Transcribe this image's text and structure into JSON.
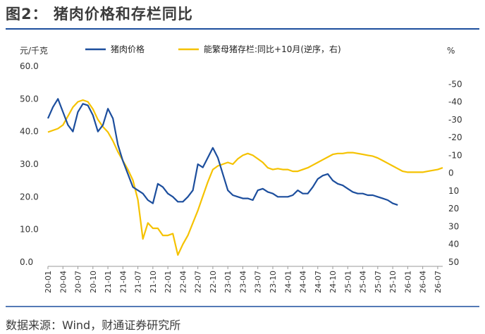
{
  "figure": {
    "title": "图2： 猪肉价格和存栏同比",
    "source": "数据来源：Wind，财通证券研究所"
  },
  "colors": {
    "pork": "#1c4e9d",
    "stock": "#f5c200",
    "rule": "#1c4e9d",
    "axis": "#999999"
  },
  "chart_data": {
    "type": "line",
    "left_unit": "元/千克",
    "right_unit": "%",
    "left_axis": {
      "ylim": [
        0,
        60
      ],
      "ticks": [
        "0.0",
        "10.0",
        "20.0",
        "30.0",
        "40.0",
        "50.0",
        "60.0"
      ]
    },
    "right_axis": {
      "reversed": true,
      "ylim": [
        -60,
        50
      ],
      "ticks": [
        "-50",
        "-40",
        "-30",
        "-20",
        "-10",
        "0",
        "10",
        "20",
        "30",
        "40",
        "50"
      ]
    },
    "x_ticks": [
      "20-01",
      "20-04",
      "20-07",
      "20-10",
      "21-01",
      "21-04",
      "21-07",
      "21-10",
      "22-01",
      "22-04",
      "22-07",
      "22-10",
      "23-01",
      "23-04",
      "23-07",
      "23-10",
      "24-01",
      "24-04",
      "24-07",
      "24-10",
      "25-01",
      "25-04",
      "25-07",
      "25-10",
      "26-01",
      "26-04",
      "26-07"
    ],
    "legend_position": "top",
    "grid": false,
    "series": [
      {
        "name": "猪肉价格",
        "axis": "left",
        "points": [
          [
            "20-01",
            44
          ],
          [
            "20-02",
            47.5
          ],
          [
            "20-03",
            50
          ],
          [
            "20-04",
            46
          ],
          [
            "20-05",
            42
          ],
          [
            "20-06",
            40
          ],
          [
            "20-07",
            46
          ],
          [
            "20-08",
            48.5
          ],
          [
            "20-09",
            48
          ],
          [
            "20-10",
            45
          ],
          [
            "20-11",
            40
          ],
          [
            "20-12",
            42
          ],
          [
            "21-01",
            47
          ],
          [
            "21-02",
            44
          ],
          [
            "21-03",
            36
          ],
          [
            "21-04",
            31
          ],
          [
            "21-05",
            27
          ],
          [
            "21-06",
            23
          ],
          [
            "21-07",
            22
          ],
          [
            "21-08",
            21
          ],
          [
            "21-09",
            19
          ],
          [
            "21-10",
            18
          ],
          [
            "21-11",
            24
          ],
          [
            "21-12",
            23
          ],
          [
            "22-01",
            21
          ],
          [
            "22-02",
            20
          ],
          [
            "22-03",
            18.5
          ],
          [
            "22-04",
            18.5
          ],
          [
            "22-05",
            20
          ],
          [
            "22-06",
            22
          ],
          [
            "22-07",
            30
          ],
          [
            "22-08",
            29
          ],
          [
            "22-09",
            32
          ],
          [
            "22-10",
            35
          ],
          [
            "22-11",
            32
          ],
          [
            "22-12",
            27
          ],
          [
            "23-01",
            22
          ],
          [
            "23-02",
            20.5
          ],
          [
            "23-03",
            20
          ],
          [
            "23-04",
            19.5
          ],
          [
            "23-05",
            19.5
          ],
          [
            "23-06",
            19
          ],
          [
            "23-07",
            22
          ],
          [
            "23-08",
            22.5
          ],
          [
            "23-09",
            21.5
          ],
          [
            "23-10",
            21
          ],
          [
            "23-11",
            20
          ],
          [
            "23-12",
            20
          ],
          [
            "24-01",
            20
          ],
          [
            "24-02",
            20.5
          ],
          [
            "24-03",
            22
          ],
          [
            "24-04",
            21
          ],
          [
            "24-05",
            21
          ],
          [
            "24-06",
            23
          ],
          [
            "24-07",
            25.5
          ],
          [
            "24-08",
            26.5
          ],
          [
            "24-09",
            27
          ],
          [
            "24-10",
            25
          ],
          [
            "24-11",
            24
          ],
          [
            "24-12",
            23.5
          ],
          [
            "25-01",
            22.5
          ],
          [
            "25-02",
            21.5
          ],
          [
            "25-03",
            21
          ],
          [
            "25-04",
            21
          ],
          [
            "25-05",
            20.5
          ],
          [
            "25-06",
            20.5
          ],
          [
            "25-07",
            20
          ],
          [
            "25-08",
            19.5
          ],
          [
            "25-09",
            19
          ],
          [
            "25-10",
            18
          ],
          [
            "25-11",
            17.5
          ]
        ]
      },
      {
        "name": "能繁母猪存栏:同比+10月(逆序，右)",
        "axis": "right",
        "points": [
          [
            "20-01",
            -23
          ],
          [
            "20-02",
            -24
          ],
          [
            "20-03",
            -25
          ],
          [
            "20-04",
            -27
          ],
          [
            "20-05",
            -32
          ],
          [
            "20-06",
            -37
          ],
          [
            "20-07",
            -40
          ],
          [
            "20-08",
            -41
          ],
          [
            "20-09",
            -40
          ],
          [
            "20-10",
            -36
          ],
          [
            "20-11",
            -30
          ],
          [
            "20-12",
            -26
          ],
          [
            "21-01",
            -23
          ],
          [
            "21-02",
            -18
          ],
          [
            "21-03",
            -12
          ],
          [
            "21-04",
            -7
          ],
          [
            "21-05",
            -2
          ],
          [
            "21-06",
            4
          ],
          [
            "21-07",
            15
          ],
          [
            "21-08",
            37
          ],
          [
            "21-09",
            28
          ],
          [
            "21-10",
            31
          ],
          [
            "21-11",
            31
          ],
          [
            "21-12",
            35
          ],
          [
            "22-01",
            35
          ],
          [
            "22-02",
            34
          ],
          [
            "22-03",
            46
          ],
          [
            "22-04",
            40
          ],
          [
            "22-05",
            35
          ],
          [
            "22-06",
            28
          ],
          [
            "22-07",
            21
          ],
          [
            "22-08",
            13
          ],
          [
            "22-09",
            5
          ],
          [
            "22-10",
            -2
          ],
          [
            "22-11",
            -4
          ],
          [
            "22-12",
            -5
          ],
          [
            "23-01",
            -6
          ],
          [
            "23-02",
            -5
          ],
          [
            "23-03",
            -8
          ],
          [
            "23-04",
            -10
          ],
          [
            "23-05",
            -11
          ],
          [
            "23-06",
            -10
          ],
          [
            "23-07",
            -8
          ],
          [
            "23-08",
            -6
          ],
          [
            "23-09",
            -3
          ],
          [
            "23-10",
            -2
          ],
          [
            "23-11",
            -2.5
          ],
          [
            "23-12",
            -2
          ],
          [
            "24-01",
            -2
          ],
          [
            "24-02",
            -1
          ],
          [
            "24-03",
            -1
          ],
          [
            "24-04",
            -2
          ],
          [
            "24-05",
            -3
          ],
          [
            "24-06",
            -4.5
          ],
          [
            "24-07",
            -6
          ],
          [
            "24-08",
            -7.5
          ],
          [
            "24-09",
            -9
          ],
          [
            "24-10",
            -10.5
          ],
          [
            "24-11",
            -11
          ],
          [
            "24-12",
            -11
          ],
          [
            "25-01",
            -11.5
          ],
          [
            "25-02",
            -11.5
          ],
          [
            "25-03",
            -11
          ],
          [
            "25-04",
            -10.5
          ],
          [
            "25-05",
            -10
          ],
          [
            "25-06",
            -9.5
          ],
          [
            "25-07",
            -8.5
          ],
          [
            "25-08",
            -7
          ],
          [
            "25-09",
            -5.5
          ],
          [
            "25-10",
            -4
          ],
          [
            "25-11",
            -2.5
          ],
          [
            "25-12",
            -1
          ],
          [
            "26-01",
            -0.5
          ],
          [
            "26-02",
            -0.5
          ],
          [
            "26-03",
            -0.5
          ],
          [
            "26-04",
            -0.5
          ],
          [
            "26-05",
            -1
          ],
          [
            "26-06",
            -1.5
          ],
          [
            "26-07",
            -2
          ],
          [
            "26-08",
            -3
          ]
        ]
      }
    ]
  }
}
